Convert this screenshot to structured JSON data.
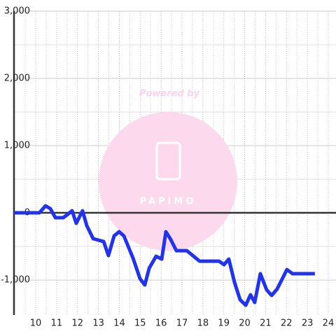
{
  "chart_data": {
    "type": "line",
    "x": [
      8.96,
      10.17,
      10.47,
      10.7,
      10.94,
      11.31,
      11.54,
      11.74,
      11.94,
      12.24,
      12.44,
      12.75,
      13.25,
      13.48,
      13.75,
      13.99,
      14.22,
      14.66,
      14.99,
      15.22,
      15.43,
      15.76,
      16.03,
      16.23,
      16.46,
      16.73,
      17.23,
      17.84,
      18.77,
      19.01,
      19.24,
      19.51,
      19.78,
      20.05,
      20.28,
      20.48,
      20.75,
      21.05,
      21.29,
      21.55,
      21.82,
      22.02,
      22.29,
      23.36
    ],
    "series": [
      {
        "color": "#2233ee",
        "values": [
          0,
          0,
          104,
          62,
          -73,
          -73,
          -21,
          31,
          -156,
          31,
          -188,
          -385,
          -427,
          -635,
          -344,
          -281,
          -344,
          -677,
          -979,
          -1073,
          -823,
          -646,
          -688,
          -281,
          -396,
          -563,
          -563,
          -719,
          -719,
          -771,
          -688,
          -1031,
          -1292,
          -1375,
          -1219,
          -1333,
          -906,
          -1146,
          -1229,
          -1135,
          -969,
          -844,
          -906,
          -906
        ]
      }
    ],
    "xlim": [
      8.96,
      24.37
    ],
    "xticks": [
      10,
      11,
      12,
      13,
      14,
      15,
      16,
      17,
      18,
      19,
      20,
      21,
      22,
      23,
      24
    ],
    "minor_xticks": [
      9.5,
      10.5,
      11.5,
      12.5,
      13.5,
      14.5,
      15.5,
      16.5,
      17.5,
      18.5,
      19.5,
      20.5,
      21.5,
      22.5,
      23.5
    ],
    "ylim": [
      -1520,
      3000
    ],
    "yticks": [
      {
        "value": -1000,
        "label": "-1,000"
      },
      0,
      {
        "value": 1000,
        "label": "1,000"
      },
      {
        "value": 2000,
        "label": "2,000"
      },
      {
        "value": 3000,
        "label": "3,000"
      }
    ],
    "minor_yticks": [
      -500,
      500,
      1500,
      2500
    ],
    "grid": true
  },
  "watermark": {
    "line1": "Powered by",
    "line2": "PAPIMO"
  }
}
